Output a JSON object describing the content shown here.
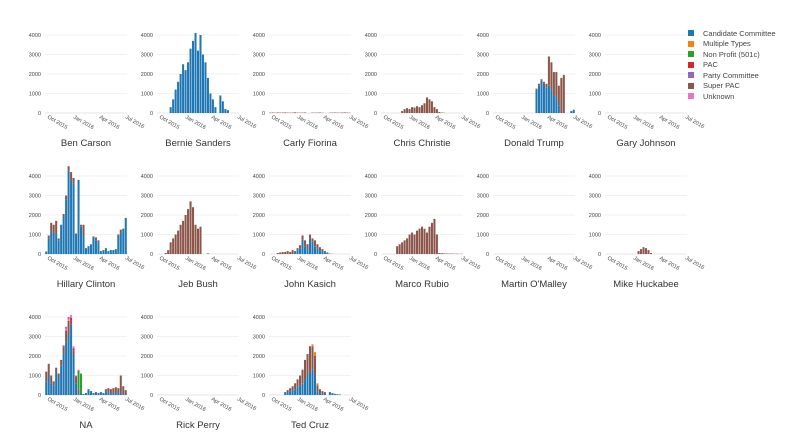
{
  "colors": {
    "candidate": "#1f77b4",
    "multiple": "#ff7f0e",
    "nonprofit": "#2ca02c",
    "pac": "#d62728",
    "party": "#9467bd",
    "superpac": "#8c564b",
    "unknown": "#e377c2",
    "grid": "#ececec",
    "axis": "#444444"
  },
  "legend": [
    {
      "label": "Candidate Committee",
      "key": "candidate"
    },
    {
      "label": "Multiple Types",
      "key": "multiple"
    },
    {
      "label": "Non Profit (501c)",
      "key": "nonprofit"
    },
    {
      "label": "PAC",
      "key": "pac"
    },
    {
      "label": "Party Committee",
      "key": "party"
    },
    {
      "label": "Super PAC",
      "key": "superpac"
    },
    {
      "label": "Unknown",
      "key": "unknown"
    }
  ],
  "chart_data": {
    "type": "bar",
    "layout": "small-multiples",
    "legend_position": "top-right",
    "grid": true,
    "ylim": [
      0,
      4000
    ],
    "yticks": [
      "0",
      "1000",
      "2000",
      "3000",
      "4000"
    ],
    "xticks": [
      "Oct 2015",
      "Jan 2016",
      "Apr 2016",
      "Jul 2016"
    ],
    "panels": [
      {
        "name": "Ben Carson",
        "series": []
      },
      {
        "name": "Bernie Sanders",
        "series": [
          {
            "type": "candidate",
            "start": 5,
            "values": [
              300,
              700,
              1200,
              1600,
              2000,
              2500,
              2200,
              2600,
              3300,
              3700,
              4100,
              3200,
              4000,
              3000,
              2600,
              1800,
              1000,
              700,
              300,
              0,
              900,
              600,
              200,
              150
            ]
          }
        ]
      },
      {
        "name": "Carly Fiorina",
        "series": [
          {
            "type": "superpac",
            "start": 0,
            "values": [
              20,
              25,
              15,
              30,
              20,
              25,
              30,
              20,
              15,
              25,
              35,
              20,
              15,
              20,
              25,
              0,
              0,
              20,
              15,
              20,
              25,
              15,
              0,
              0,
              15,
              20,
              25,
              20,
              15,
              25,
              30,
              20,
              15
            ]
          }
        ]
      },
      {
        "name": "Chris Christie",
        "series": [
          {
            "type": "superpac",
            "start": 8,
            "values": [
              100,
              200,
              250,
              200,
              300,
              280,
              350,
              300,
              400,
              500,
              800,
              700,
              600,
              300,
              200,
              50,
              20,
              10
            ]
          }
        ]
      },
      {
        "name": "Donald Trump",
        "series": [
          {
            "type": "candidate",
            "start": 17,
            "values": [
              1200,
              1400,
              1650,
              1500,
              1300,
              1400,
              1200,
              900,
              800,
              400,
              0,
              0,
              0,
              0,
              100,
              150,
              50,
              30,
              0,
              0,
              0,
              0,
              0,
              0,
              200,
              400,
              650,
              700
            ]
          },
          {
            "type": "superpac",
            "start": 17,
            "values": [
              50,
              100,
              80,
              100,
              200,
              1500,
              1400,
              1200,
              1300,
              1000,
              1800,
              1950,
              0,
              0,
              0,
              20,
              0,
              100,
              150,
              100,
              50,
              120,
              50,
              60,
              300,
              200,
              400,
              1850
            ]
          }
        ]
      },
      {
        "name": "Gary Johnson",
        "series": []
      },
      {
        "name": "Hillary Clinton",
        "series": [
          {
            "type": "candidate",
            "start": 0,
            "values": [
              100,
              800,
              1200,
              1000,
              1100,
              700,
              1500,
              1900,
              2800,
              4300,
              3800,
              3600,
              1000,
              3800,
              1400,
              1000,
              300,
              400,
              500,
              900,
              700,
              600,
              100,
              200,
              300,
              150,
              200,
              200,
              250,
              900,
              1100,
              1300,
              1850
            ]
          },
          {
            "type": "superpac",
            "start": 0,
            "values": [
              30,
              150,
              400,
              500,
              600,
              100,
              0,
              150,
              200,
              200,
              400,
              300,
              50,
              0,
              100,
              500,
              0,
              0,
              0,
              0,
              150,
              100,
              50,
              0,
              0,
              0,
              0,
              0,
              0,
              100,
              150,
              0,
              0
            ]
          }
        ]
      },
      {
        "name": "Jeb Bush",
        "series": [
          {
            "type": "superpac",
            "start": 3,
            "values": [
              50,
              200,
              600,
              800,
              1000,
              1200,
              1500,
              1700,
              2000,
              2300,
              2700,
              2400,
              1500,
              1300,
              1400,
              0,
              0,
              30
            ]
          }
        ]
      },
      {
        "name": "John Kasich",
        "series": [
          {
            "type": "candidate",
            "start": 10,
            "values": [
              100,
              200,
              300,
              750,
              400,
              250,
              800,
              650,
              400,
              300,
              200,
              150,
              100,
              50
            ]
          },
          {
            "type": "superpac",
            "start": 3,
            "values": [
              50,
              80,
              100,
              100,
              150,
              100,
              200,
              50,
              100,
              150,
              200,
              300,
              250,
              200,
              150,
              300,
              200,
              150,
              100,
              50,
              30,
              20,
              10
            ]
          }
        ]
      },
      {
        "name": "Marco Rubio",
        "series": [
          {
            "type": "superpac",
            "start": 6,
            "values": [
              400,
              500,
              600,
              700,
              800,
              1000,
              1100,
              1000,
              1200,
              1300,
              1400,
              1300,
              1100,
              1400,
              1600,
              1800,
              1000,
              50,
              40,
              30,
              25,
              20,
              20,
              15,
              15,
              10,
              10,
              10
            ]
          }
        ]
      },
      {
        "name": "Martin O'Malley",
        "series": []
      },
      {
        "name": "Mike Huckabee",
        "series": [
          {
            "type": "superpac",
            "start": 13,
            "values": [
              150,
              250,
              350,
              300,
              200,
              50
            ]
          }
        ]
      },
      {
        "name": "NA",
        "series": [
          {
            "type": "candidate",
            "start": 0,
            "values": [
              700,
              1000,
              600,
              500,
              1100,
              900,
              1500,
              2100,
              2700,
              3100,
              3600,
              2000,
              600,
              100,
              100,
              50,
              100,
              300,
              200,
              100,
              150,
              100,
              150,
              100,
              200,
              150,
              100,
              100,
              100,
              150,
              100,
              50,
              50
            ]
          },
          {
            "type": "superpac",
            "start": 0,
            "values": [
              500,
              600,
              400,
              200,
              300,
              200,
              300,
              400,
              500,
              600,
              200,
              300,
              300,
              200,
              0,
              0,
              0,
              0,
              0,
              0,
              0,
              0,
              0,
              0,
              100,
              200,
              200,
              250,
              300,
              200,
              900,
              400,
              200
            ]
          },
          {
            "type": "nonprofit",
            "start": 13,
            "values": [
              900,
              1000
            ]
          },
          {
            "type": "pac",
            "start": 8,
            "values": [
              100,
              100,
              150,
              100,
              50,
              50
            ]
          },
          {
            "type": "unknown",
            "start": 8,
            "values": [
              100,
              100,
              150,
              100,
              50,
              50
            ]
          },
          {
            "type": "party",
            "start": 7,
            "values": [
              50,
              100,
              100
            ]
          }
        ]
      },
      {
        "name": "Rick Perry",
        "series": []
      },
      {
        "name": "Ted Cruz",
        "series": [
          {
            "type": "candidate",
            "start": 6,
            "values": [
              100,
              150,
              200,
              250,
              300,
              400,
              500,
              600,
              800,
              1000,
              1200,
              1300,
              1000,
              200,
              100,
              100,
              50,
              0,
              150,
              100,
              60,
              40,
              30
            ]
          },
          {
            "type": "superpac",
            "start": 6,
            "values": [
              50,
              100,
              150,
              200,
              300,
              400,
              500,
              700,
              1000,
              1100,
              1300,
              1200,
              1000,
              300,
              200,
              100,
              100
            ]
          },
          {
            "type": "multiple",
            "start": 17,
            "values": [
              100,
              200,
              100
            ]
          }
        ]
      }
    ]
  }
}
